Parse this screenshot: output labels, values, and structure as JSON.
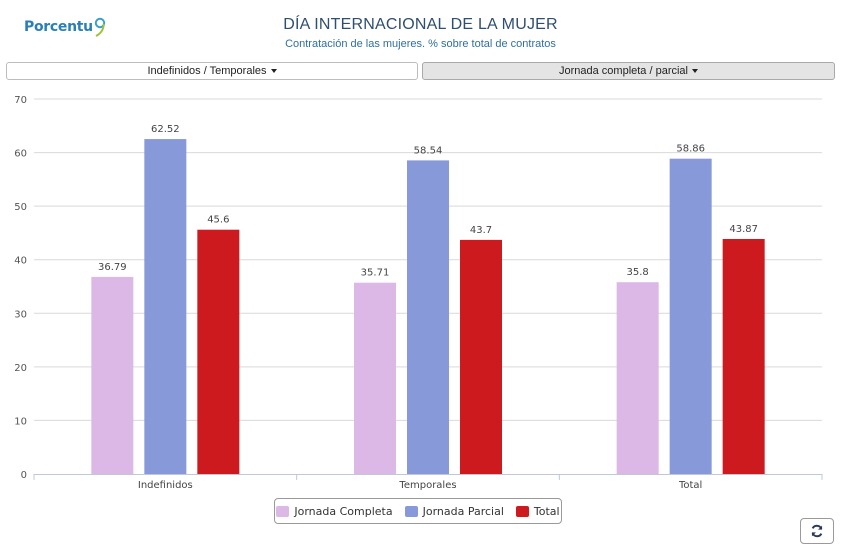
{
  "header": {
    "logo_text": "Porcentu",
    "title": "DÍA INTERNACIONAL DE LA MUJER",
    "subtitle": "Contratación de las mujeres. % sobre total de contratos"
  },
  "toggles": [
    {
      "label": "Indefinidos / Temporales",
      "active": false
    },
    {
      "label": "Jornada completa / parcial",
      "active": true
    }
  ],
  "refresh": {
    "icon": "refresh-icon"
  },
  "chart_data": {
    "type": "bar",
    "categories": [
      "Indefinidos",
      "Temporales",
      "Total"
    ],
    "series": [
      {
        "name": "Jornada Completa",
        "color": "#dbb8e6",
        "values": [
          36.79,
          35.71,
          35.8
        ]
      },
      {
        "name": "Jornada Parcial",
        "color": "#8899d9",
        "values": [
          62.52,
          58.54,
          58.86
        ]
      },
      {
        "name": "Total",
        "color": "#cc1a1f",
        "values": [
          45.6,
          43.7,
          43.87
        ]
      }
    ],
    "ylim": [
      0,
      70
    ],
    "yticks": [
      0,
      10,
      20,
      30,
      40,
      50,
      60,
      70
    ],
    "grid": true,
    "legend_position": "bottom-center"
  }
}
